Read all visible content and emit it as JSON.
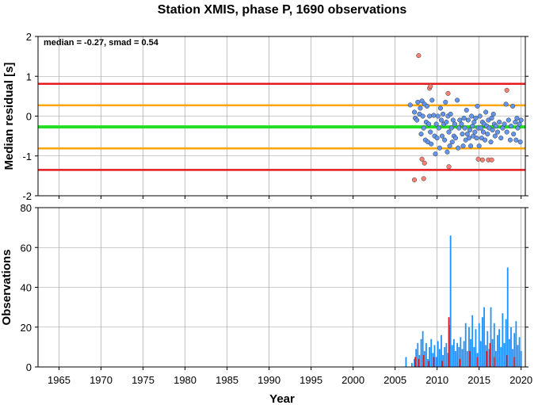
{
  "chart_data": [
    {
      "type": "scatter",
      "title": "Station XMIS, phase P, 1690 observations",
      "annotation": "median = -0.27, smad = 0.54",
      "xlabel": "",
      "ylabel": "Median residual [s]",
      "xlim": [
        1962.5,
        2020.5
      ],
      "ylim": [
        -2,
        2
      ],
      "yticks": [
        "-2",
        "-1",
        "0",
        "1",
        "2"
      ],
      "grid": true,
      "reference_lines": [
        {
          "value": 0.81,
          "color": "#e41a1c"
        },
        {
          "value": 0.27,
          "color": "#ffa500"
        },
        {
          "value": -0.27,
          "color": "#22dd22"
        },
        {
          "value": -0.81,
          "color": "#ffa500"
        },
        {
          "value": -1.35,
          "color": "#e41a1c"
        }
      ],
      "series": [
        {
          "color": "#6495ed",
          "points": [
            [
              2006.8,
              0.28
            ],
            [
              2007.3,
              0.1
            ],
            [
              2007.4,
              -0.05
            ],
            [
              2007.6,
              -0.1
            ],
            [
              2007.7,
              0.35
            ],
            [
              2007.9,
              0.05
            ],
            [
              2008.0,
              0.2
            ],
            [
              2008.1,
              -0.45
            ],
            [
              2008.2,
              0.38
            ],
            [
              2008.3,
              0.0
            ],
            [
              2008.4,
              -0.3
            ],
            [
              2008.5,
              0.3
            ],
            [
              2008.6,
              -0.6
            ],
            [
              2008.7,
              -0.15
            ],
            [
              2008.8,
              0.25
            ],
            [
              2008.9,
              -0.65
            ],
            [
              2009.0,
              -0.2
            ],
            [
              2009.1,
              0.0
            ],
            [
              2009.2,
              -0.4
            ],
            [
              2009.3,
              -0.7
            ],
            [
              2009.4,
              0.4
            ],
            [
              2009.6,
              0.02
            ],
            [
              2009.7,
              -0.5
            ],
            [
              2009.8,
              -0.95
            ],
            [
              2009.9,
              -0.2
            ],
            [
              2010.0,
              -0.55
            ],
            [
              2010.1,
              0.0
            ],
            [
              2010.2,
              -0.3
            ],
            [
              2010.3,
              -0.8
            ],
            [
              2010.4,
              0.2
            ],
            [
              2010.5,
              -0.1
            ],
            [
              2010.6,
              -0.5
            ],
            [
              2010.7,
              0.05
            ],
            [
              2010.8,
              -0.2
            ],
            [
              2010.9,
              -0.6
            ],
            [
              2011.0,
              0.35
            ],
            [
              2011.1,
              -0.15
            ],
            [
              2011.2,
              -0.9
            ],
            [
              2011.3,
              0.0
            ],
            [
              2011.4,
              -0.4
            ],
            [
              2011.5,
              -0.75
            ],
            [
              2011.6,
              0.05
            ],
            [
              2011.7,
              -0.3
            ],
            [
              2011.8,
              -0.65
            ],
            [
              2011.9,
              -0.1
            ],
            [
              2012.0,
              -0.5
            ],
            [
              2012.1,
              -0.2
            ],
            [
              2012.2,
              -0.55
            ],
            [
              2012.4,
              0.4
            ],
            [
              2012.5,
              -0.8
            ],
            [
              2012.6,
              -0.3
            ],
            [
              2012.7,
              -0.1
            ],
            [
              2012.9,
              -0.2
            ],
            [
              2013.0,
              -0.45
            ],
            [
              2013.1,
              -0.75
            ],
            [
              2013.2,
              -0.05
            ],
            [
              2013.3,
              -0.3
            ],
            [
              2013.4,
              -0.6
            ],
            [
              2013.5,
              0.15
            ],
            [
              2013.6,
              -0.45
            ],
            [
              2013.7,
              -0.1
            ],
            [
              2013.8,
              -0.55
            ],
            [
              2013.9,
              -0.35
            ],
            [
              2014.0,
              -0.75
            ],
            [
              2014.1,
              0.0
            ],
            [
              2014.2,
              -0.25
            ],
            [
              2014.3,
              -0.5
            ],
            [
              2014.4,
              -0.15
            ],
            [
              2014.5,
              -0.4
            ],
            [
              2014.6,
              -0.05
            ],
            [
              2014.7,
              -0.55
            ],
            [
              2014.8,
              0.25
            ],
            [
              2014.9,
              -0.3
            ],
            [
              2015.0,
              -0.75
            ],
            [
              2015.1,
              0.0
            ],
            [
              2015.2,
              -0.3
            ],
            [
              2015.3,
              -0.55
            ],
            [
              2015.4,
              -0.15
            ],
            [
              2015.5,
              -0.4
            ],
            [
              2015.6,
              -0.2
            ],
            [
              2015.7,
              -0.6
            ],
            [
              2015.8,
              0.1
            ],
            [
              2015.9,
              -0.25
            ],
            [
              2016.0,
              -0.45
            ],
            [
              2016.1,
              -0.1
            ],
            [
              2016.2,
              -0.3
            ],
            [
              2016.4,
              -0.65
            ],
            [
              2016.5,
              -0.05
            ],
            [
              2016.6,
              -0.35
            ],
            [
              2016.7,
              0.05
            ],
            [
              2016.8,
              -0.2
            ],
            [
              2016.9,
              -0.5
            ],
            [
              2017.0,
              -0.25
            ],
            [
              2017.2,
              -0.4
            ],
            [
              2017.4,
              -0.15
            ],
            [
              2017.6,
              -0.55
            ],
            [
              2017.8,
              -0.3
            ],
            [
              2018.0,
              -0.2
            ],
            [
              2018.2,
              0.3
            ],
            [
              2018.3,
              -0.4
            ],
            [
              2018.5,
              -0.1
            ],
            [
              2018.7,
              -0.6
            ],
            [
              2018.8,
              -0.25
            ],
            [
              2019.0,
              0.25
            ],
            [
              2019.1,
              -0.45
            ],
            [
              2019.3,
              -0.15
            ],
            [
              2019.4,
              -0.6
            ],
            [
              2019.5,
              -0.05
            ],
            [
              2019.6,
              -0.3
            ],
            [
              2019.8,
              -0.2
            ],
            [
              2019.9,
              -0.65
            ],
            [
              2020.0,
              -0.1
            ]
          ]
        },
        {
          "color": "#fa8072",
          "points": [
            [
              2007.3,
              -1.6
            ],
            [
              2007.8,
              1.52
            ],
            [
              2008.2,
              -1.08
            ],
            [
              2008.4,
              -1.57
            ],
            [
              2008.5,
              -1.18
            ],
            [
              2009.1,
              0.7
            ],
            [
              2009.2,
              0.75
            ],
            [
              2011.3,
              0.57
            ],
            [
              2011.4,
              -1.27
            ],
            [
              2014.9,
              -1.08
            ],
            [
              2015.4,
              -1.1
            ],
            [
              2016.1,
              -1.1
            ],
            [
              2016.5,
              -1.1
            ],
            [
              2018.3,
              0.65
            ]
          ]
        }
      ]
    },
    {
      "type": "bar",
      "xlabel": "Year",
      "ylabel": "Observations",
      "xlim": [
        1962.5,
        2020.5
      ],
      "ylim": [
        0,
        80
      ],
      "xticks": [
        "1965",
        "1970",
        "1975",
        "1980",
        "1985",
        "1990",
        "1995",
        "2000",
        "2005",
        "2010",
        "2015",
        "2020"
      ],
      "yticks": [
        "0",
        "20",
        "40",
        "60",
        "80"
      ],
      "grid": true,
      "bar_colors": {
        "main": "#1e90ff",
        "highlight": "#e41a1c"
      },
      "series": [
        {
          "color": "#1e90ff",
          "points": [
            [
              2006.3,
              5
            ],
            [
              2007.0,
              2
            ],
            [
              2007.3,
              4
            ],
            [
              2007.5,
              9
            ],
            [
              2007.7,
              12
            ],
            [
              2007.9,
              6
            ],
            [
              2008.1,
              14
            ],
            [
              2008.3,
              18
            ],
            [
              2008.5,
              8
            ],
            [
              2008.7,
              12
            ],
            [
              2008.9,
              4
            ],
            [
              2009.1,
              10
            ],
            [
              2009.3,
              14
            ],
            [
              2009.5,
              7
            ],
            [
              2009.7,
              11
            ],
            [
              2009.9,
              5
            ],
            [
              2010.1,
              13
            ],
            [
              2010.3,
              9
            ],
            [
              2010.5,
              16
            ],
            [
              2010.7,
              6
            ],
            [
              2010.9,
              10
            ],
            [
              2011.1,
              12
            ],
            [
              2011.3,
              7
            ],
            [
              2011.5,
              21
            ],
            [
              2011.6,
              66
            ],
            [
              2011.8,
              11
            ],
            [
              2012.0,
              14
            ],
            [
              2012.2,
              8
            ],
            [
              2012.4,
              12
            ],
            [
              2012.6,
              10
            ],
            [
              2012.8,
              15
            ],
            [
              2013.0,
              9
            ],
            [
              2013.2,
              13
            ],
            [
              2013.4,
              22
            ],
            [
              2013.6,
              8
            ],
            [
              2013.8,
              20
            ],
            [
              2014.0,
              14
            ],
            [
              2014.2,
              26
            ],
            [
              2014.4,
              10
            ],
            [
              2014.6,
              19
            ],
            [
              2014.8,
              7
            ],
            [
              2015.0,
              22
            ],
            [
              2015.2,
              13
            ],
            [
              2015.4,
              25
            ],
            [
              2015.6,
              30
            ],
            [
              2015.8,
              11
            ],
            [
              2016.0,
              18
            ],
            [
              2016.2,
              9
            ],
            [
              2016.4,
              30
            ],
            [
              2016.6,
              14
            ],
            [
              2016.8,
              22
            ],
            [
              2017.0,
              8
            ],
            [
              2017.2,
              16
            ],
            [
              2017.4,
              19
            ],
            [
              2017.6,
              10
            ],
            [
              2017.8,
              27
            ],
            [
              2018.0,
              12
            ],
            [
              2018.2,
              24
            ],
            [
              2018.4,
              50
            ],
            [
              2018.6,
              14
            ],
            [
              2018.8,
              20
            ],
            [
              2019.0,
              9
            ],
            [
              2019.2,
              17
            ],
            [
              2019.4,
              23
            ],
            [
              2019.6,
              11
            ],
            [
              2019.8,
              15
            ],
            [
              2020.0,
              8
            ]
          ]
        },
        {
          "color": "#e41a1c",
          "points": [
            [
              2007.4,
              5
            ],
            [
              2007.8,
              4
            ],
            [
              2008.4,
              6
            ],
            [
              2009.0,
              3
            ],
            [
              2009.6,
              5
            ],
            [
              2010.6,
              3
            ],
            [
              2011.4,
              25
            ],
            [
              2012.7,
              4
            ],
            [
              2013.9,
              8
            ],
            [
              2014.8,
              5
            ],
            [
              2015.9,
              8
            ],
            [
              2016.3,
              12
            ],
            [
              2016.8,
              5
            ],
            [
              2018.3,
              6
            ],
            [
              2019.2,
              5
            ]
          ]
        }
      ]
    }
  ]
}
